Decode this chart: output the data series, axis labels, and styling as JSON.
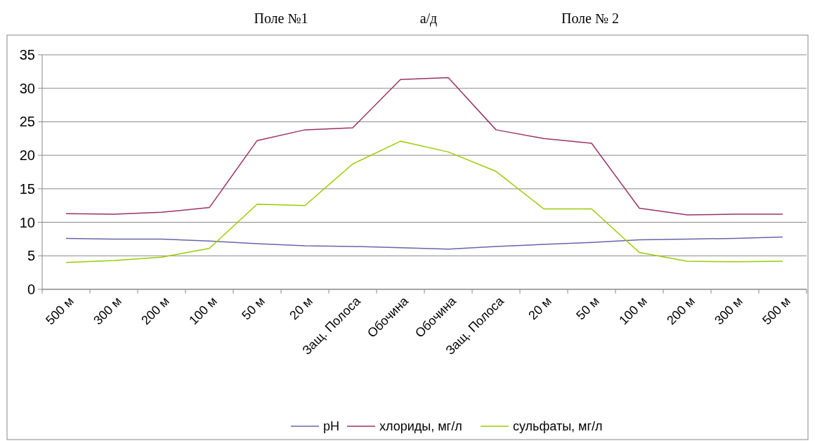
{
  "chart_data": {
    "type": "line",
    "annotations": [
      "Поле №1",
      "а/д",
      "Поле № 2"
    ],
    "categories": [
      "500 м",
      "300 м",
      "200 м",
      "100 м",
      "50 м",
      "20 м",
      "Защ. Полоса",
      "Обочина",
      "Обочина",
      "Защ. Полоса",
      "20 м",
      "50 м",
      "100 м",
      "200 м",
      "300 м",
      "500 м"
    ],
    "series": [
      {
        "name": "pH",
        "color": "#6666aa",
        "values": [
          7.6,
          7.5,
          7.5,
          7.2,
          6.8,
          6.5,
          6.4,
          6.2,
          6.0,
          6.4,
          6.7,
          7.0,
          7.4,
          7.5,
          7.6,
          7.8
        ]
      },
      {
        "name": "хлориды, мг/л",
        "color": "#993366",
        "values": [
          11.3,
          11.2,
          11.5,
          12.2,
          22.2,
          23.8,
          24.1,
          31.3,
          31.6,
          23.8,
          22.5,
          21.8,
          12.1,
          11.1,
          11.2,
          11.2
        ]
      },
      {
        "name": "сульфаты, мг/л",
        "color": "#99cc00",
        "values": [
          4.0,
          4.3,
          4.8,
          6.1,
          12.7,
          12.5,
          18.7,
          22.1,
          20.5,
          17.6,
          12.0,
          12.0,
          5.5,
          4.2,
          4.1,
          4.2
        ]
      }
    ],
    "ylim": [
      0,
      35
    ],
    "yticks": [
      0,
      5,
      10,
      15,
      20,
      25,
      30,
      35
    ],
    "grid": "y",
    "legend": "bottom",
    "marker": "none",
    "line_style": "solid"
  }
}
